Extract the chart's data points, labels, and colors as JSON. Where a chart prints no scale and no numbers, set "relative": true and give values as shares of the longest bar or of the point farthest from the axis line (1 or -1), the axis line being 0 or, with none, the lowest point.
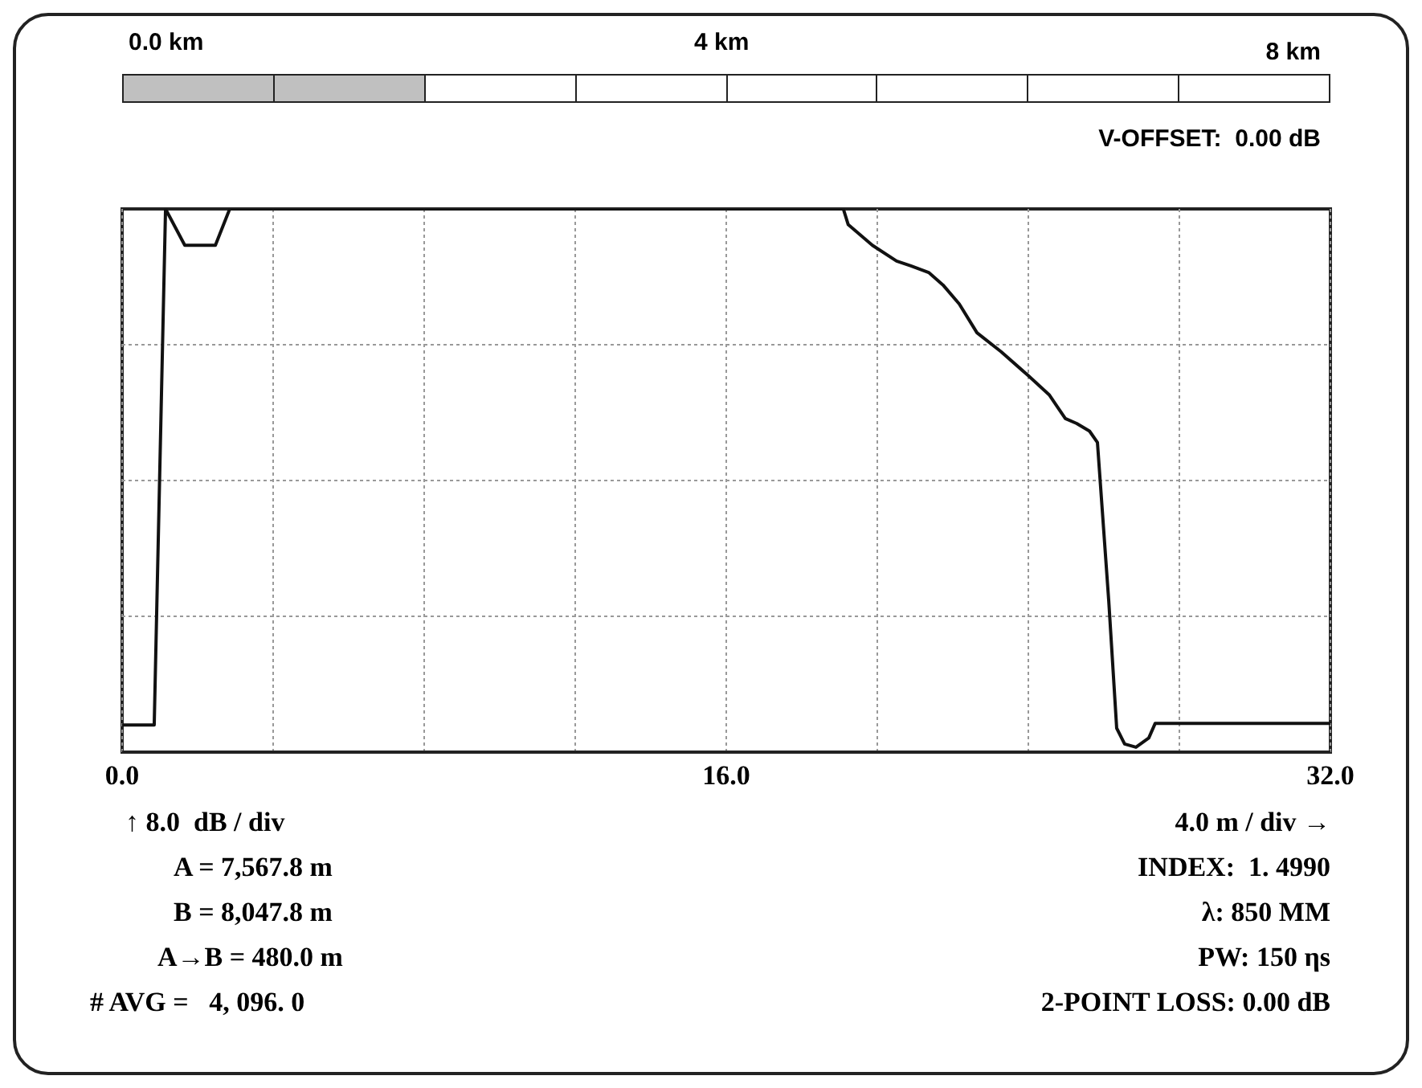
{
  "chart_data": {
    "type": "line",
    "relative": true,
    "x": [
      0,
      0.85,
      1.15,
      1.66,
      2.47,
      2.85,
      19.1,
      19.23,
      19.87,
      20.51,
      20.89,
      21.36,
      21.74,
      22.17,
      22.64,
      23.28,
      24.0,
      24.55,
      24.98,
      25.28,
      25.62,
      25.83,
      26.13,
      26.34,
      26.55,
      26.85,
      27.19,
      27.36,
      32
    ],
    "series": [
      {
        "color": "#111111",
        "values": [
          0.05,
          0.05,
          1.0,
          0.933,
          0.933,
          1.0,
          1.0,
          0.971,
          0.933,
          0.904,
          0.895,
          0.883,
          0.86,
          0.825,
          0.772,
          0.737,
          0.693,
          0.658,
          0.614,
          0.605,
          0.591,
          0.57,
          0.278,
          0.044,
          0.015,
          0.009,
          0.026,
          0.053,
          0.053
        ]
      }
    ],
    "xlim": [
      0,
      32
    ],
    "xticks": [
      {
        "value": 0,
        "label": "0.0"
      },
      {
        "value": 4,
        "label": null
      },
      {
        "value": 8,
        "label": null
      },
      {
        "value": 12,
        "label": null
      },
      {
        "value": 16,
        "label": "16.0"
      },
      {
        "value": 20,
        "label": null
      },
      {
        "value": 24,
        "label": null
      },
      {
        "value": 28,
        "label": null
      },
      {
        "value": 32,
        "label": "32.0"
      }
    ],
    "grid": true,
    "marker": "none",
    "line_style": "solid",
    "tick_labels": "x",
    "annotations": [
      "0.0 km",
      "4 km",
      "8 km",
      "V-OFFSET:  0.00 dB",
      "↑ 8.0  dB / div",
      "A = 7,567.8 m",
      "B = 8,047.8 m",
      "A→B = 480.0 m",
      "# AVG =   4, 096. 0",
      "4.0 m / div →",
      "INDEX:  1. 4990",
      "λ: 850 MM",
      "PW: 150 ηs",
      "2-POINT LOSS: 0.00 dB"
    ]
  }
}
